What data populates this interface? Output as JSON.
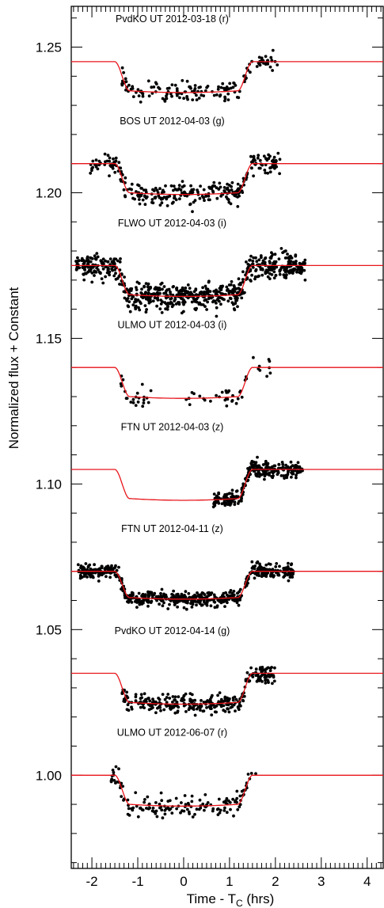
{
  "chart_data": {
    "type": "scatter",
    "xlabel": "Time - T",
    "xlabel_subscript": "C",
    "xlabel_units": " (hrs)",
    "ylabel": "Normalized flux + Constant",
    "xlim": [
      -2.45,
      4.35
    ],
    "ylim": [
      0.968,
      1.264
    ],
    "xticks": [
      -2,
      -1,
      0,
      1,
      2,
      3,
      4
    ],
    "xtick_labels": [
      "-2",
      "-1",
      "0",
      "1",
      "2",
      "3",
      "4"
    ],
    "yticks": [
      1.0,
      1.05,
      1.1,
      1.15,
      1.2,
      1.25
    ],
    "ytick_labels": [
      "1.00",
      "1.05",
      "1.10",
      "1.15",
      "1.20",
      "1.25"
    ],
    "grid": false,
    "colors": {
      "points": "#000000",
      "model": "#e8141a",
      "axes": "#000000"
    },
    "series": [
      {
        "name": "PvdKO UT 2012-03-18 (r)",
        "baseline": 1.245,
        "depth": 0.01,
        "t1": -1.5,
        "t2": -1.18,
        "t3": 1.18,
        "t4": 1.5,
        "x_start": -1.35,
        "x_end": 2.05,
        "n_points": 160,
        "scatter": 0.0032,
        "label_x": -0.25,
        "label_y": 1.2585
      },
      {
        "name": "BOS UT 2012-04-03 (g)",
        "baseline": 1.21,
        "depth": 0.01,
        "t1": -1.5,
        "t2": -1.18,
        "t3": 1.18,
        "t4": 1.5,
        "x_start": -2.05,
        "x_end": 2.1,
        "n_points": 300,
        "scatter": 0.0035,
        "label_x": -0.25,
        "label_y": 1.2235
      },
      {
        "name": "FLWO UT 2012-04-03 (i)",
        "baseline": 1.175,
        "depth": 0.01,
        "t1": -1.5,
        "t2": -1.18,
        "t3": 1.18,
        "t4": 1.5,
        "x_start": -2.35,
        "x_end": 2.65,
        "n_points": 700,
        "scatter": 0.004,
        "label_x": -0.25,
        "label_y": 1.1885
      },
      {
        "name": "ULMO UT 2012-04-03 (i)",
        "baseline": 1.14,
        "depth": 0.01,
        "t1": -1.5,
        "t2": -1.18,
        "t3": 1.18,
        "t4": 1.5,
        "x_start": -1.4,
        "x_end": 1.9,
        "n_points": 80,
        "scatter": 0.003,
        "gap": [
          -0.7,
          0.05
        ],
        "label_x": -0.25,
        "label_y": 1.1535
      },
      {
        "name": "FTN UT 2012-04-03 (z)",
        "baseline": 1.105,
        "depth": 0.01,
        "t1": -1.5,
        "t2": -1.18,
        "t3": 1.18,
        "t4": 1.5,
        "x_start": 0.65,
        "x_end": 2.6,
        "n_points": 260,
        "scatter": 0.0025,
        "label_x": -0.25,
        "label_y": 1.1185
      },
      {
        "name": "FTN UT 2012-04-11 (z)",
        "baseline": 1.07,
        "depth": 0.009,
        "t1": -1.5,
        "t2": -1.18,
        "t3": 1.18,
        "t4": 1.5,
        "x_start": -2.3,
        "x_end": 2.4,
        "n_points": 600,
        "scatter": 0.0022,
        "label_x": -0.25,
        "label_y": 1.0835
      },
      {
        "name": "PvdKO UT 2012-04-14 (g)",
        "baseline": 1.035,
        "depth": 0.01,
        "t1": -1.5,
        "t2": -1.18,
        "t3": 1.18,
        "t4": 1.5,
        "x_start": -1.35,
        "x_end": 2.0,
        "n_points": 300,
        "scatter": 0.003,
        "label_x": -0.25,
        "label_y": 1.0485
      },
      {
        "name": "ULMO UT 2012-06-07 (r)",
        "baseline": 1.0,
        "depth": 0.01,
        "t1": -1.5,
        "t2": -1.18,
        "t3": 1.18,
        "t4": 1.5,
        "x_start": -1.6,
        "x_end": 1.6,
        "n_points": 150,
        "scatter": 0.0032,
        "label_x": -0.25,
        "label_y": 1.0135
      }
    ]
  }
}
